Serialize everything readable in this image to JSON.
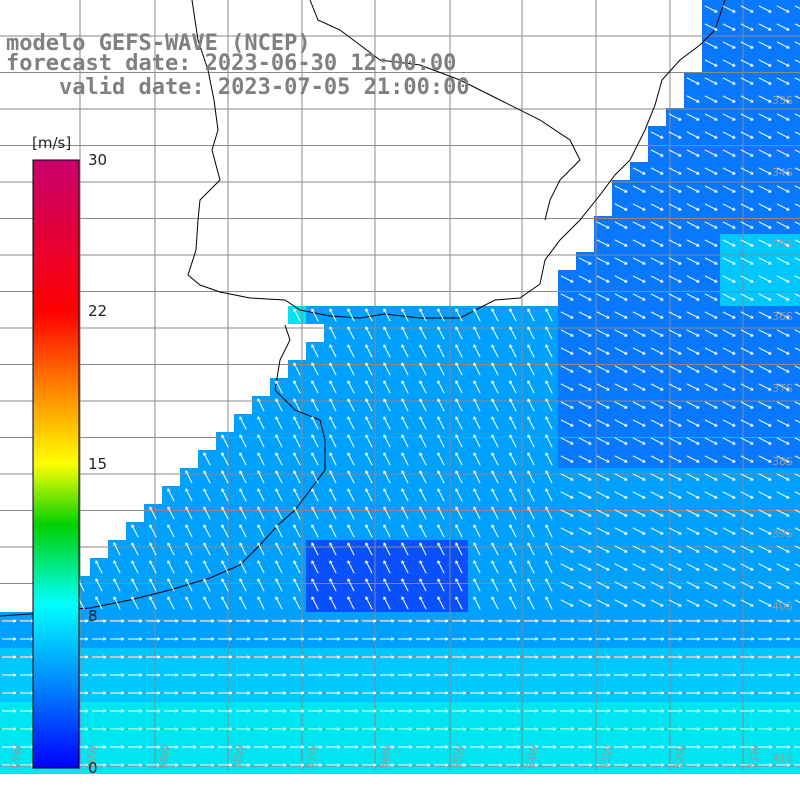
{
  "title": {
    "line1": "modelo GEFS-WAVE (NCEP)",
    "line2": "forecast date: 2023-06-30 12:00:00",
    "line3": "    valid date: 2023-07-05 21:00:00"
  },
  "colorbar": {
    "unit": "[m/s]",
    "ticks": [
      "30",
      "22",
      "15",
      "8",
      "0"
    ],
    "tick_values": [
      30,
      22,
      15,
      8,
      0
    ],
    "range": [
      0,
      30
    ],
    "colors": [
      "#0000ff",
      "#0088ff",
      "#00ffff",
      "#00c800",
      "#ffff00",
      "#ff8800",
      "#ff0000",
      "#c80078"
    ]
  },
  "map": {
    "lon_labels": [
      "61W",
      "60W",
      "59W",
      "58W",
      "57W",
      "56W",
      "55W",
      "54W",
      "53W",
      "52W",
      "51W"
    ],
    "lat_labels": [
      "33S",
      "34S",
      "35S",
      "36S",
      "37S",
      "38S",
      "39S",
      "40S",
      "41S"
    ],
    "land_color": "#ffffff",
    "coast_color": "#000000",
    "grid_color": "#808080",
    "vector_color": "#ffffff"
  }
}
